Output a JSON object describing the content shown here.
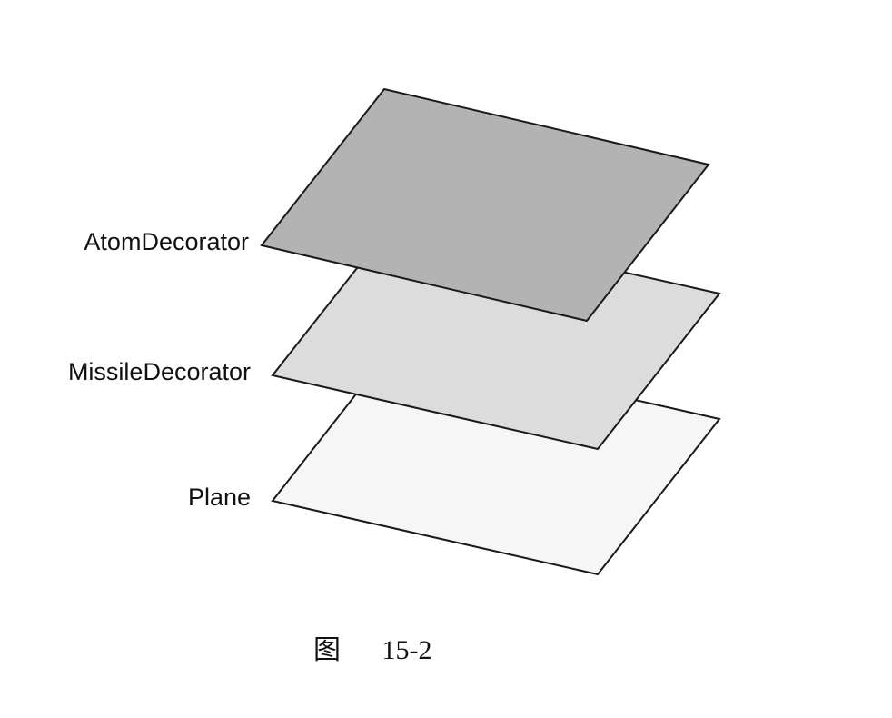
{
  "layers": [
    {
      "label": "Plane",
      "fill": "#f6f6f6"
    },
    {
      "label": "MissileDecorator",
      "fill": "#dcdcdc"
    },
    {
      "label": "AtomDecorator",
      "fill": "#b3b3b3"
    }
  ],
  "caption": {
    "prefix": "图",
    "number": "15-2"
  }
}
